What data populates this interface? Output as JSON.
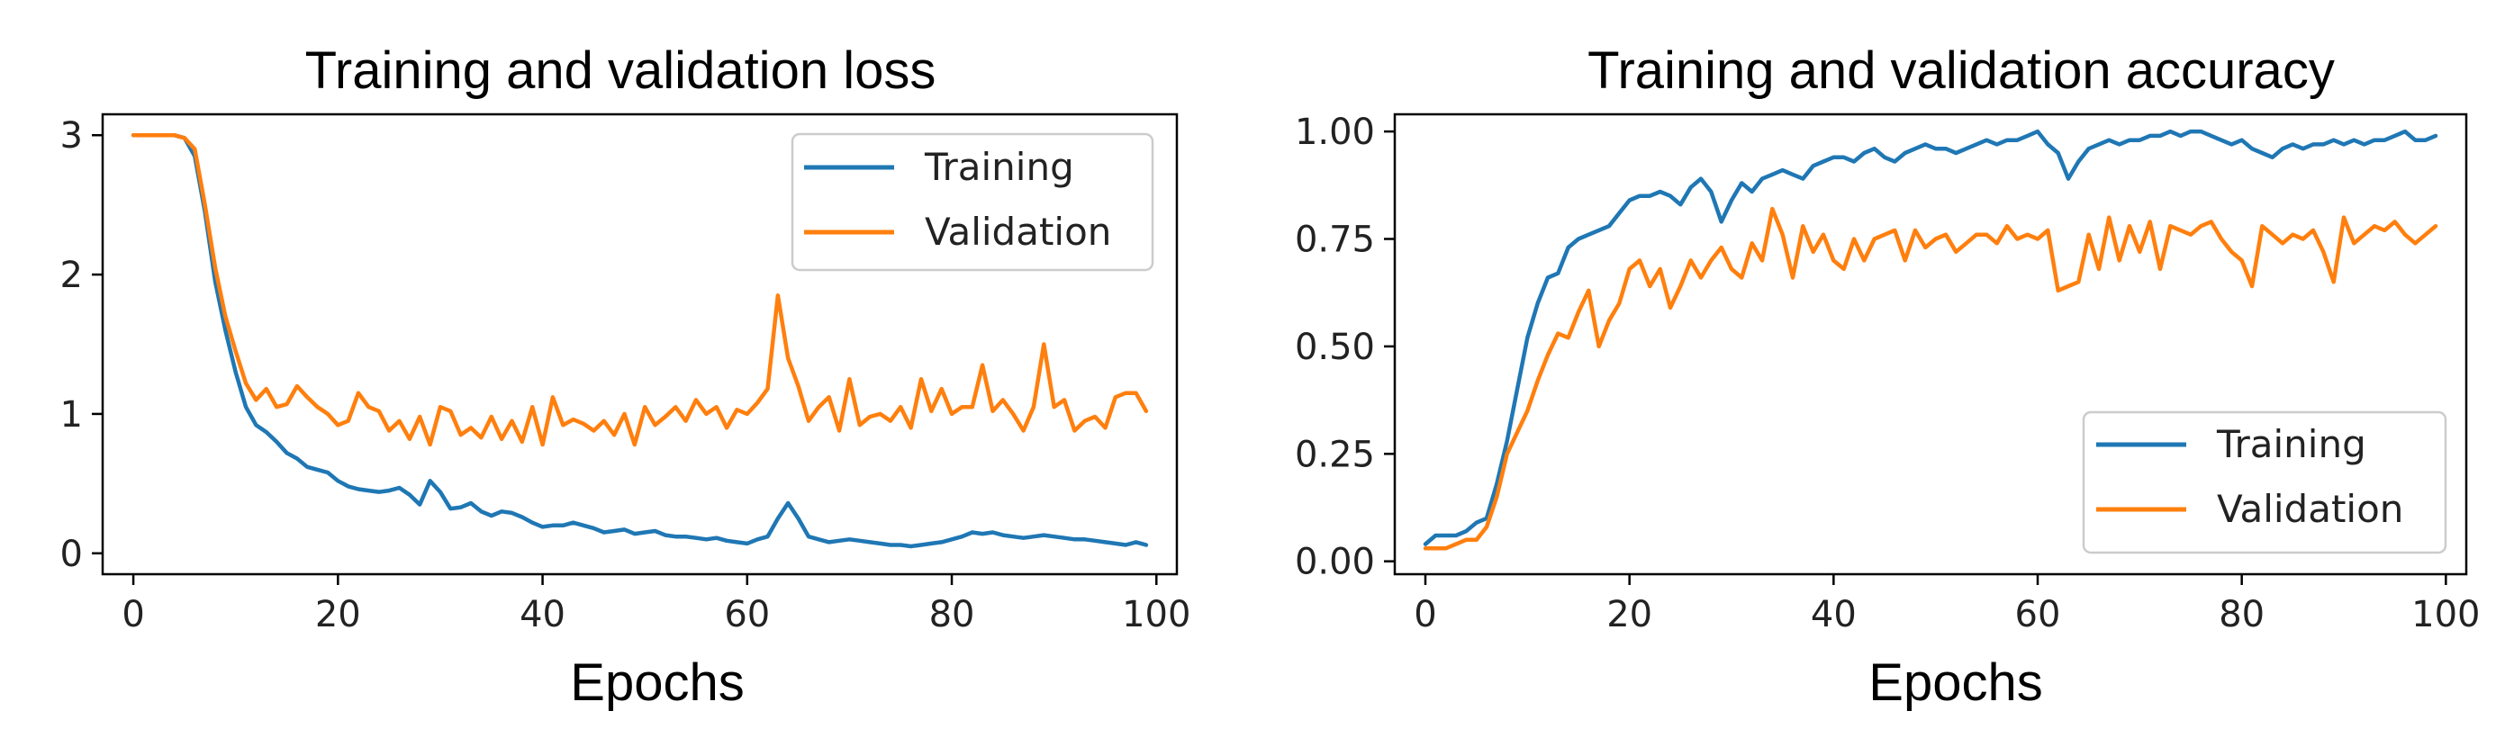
{
  "chart_data": [
    {
      "type": "line",
      "title": "Training and validation loss",
      "xlabel": "Epochs",
      "ylabel": "",
      "xlim": [
        -3,
        102
      ],
      "ylim": [
        -0.15,
        3.15
      ],
      "xticks": [
        0,
        20,
        40,
        60,
        80,
        100
      ],
      "yticks": [
        0,
        1,
        2,
        3
      ],
      "xtick_labels": [
        "0",
        "20",
        "40",
        "60",
        "80",
        "100"
      ],
      "ytick_labels": [
        "0",
        "1",
        "2",
        "3"
      ],
      "grid": false,
      "legend_position": "upper right",
      "series": [
        {
          "name": "Training",
          "color": "#1f77b4",
          "x": [
            0,
            1,
            2,
            3,
            4,
            5,
            6,
            7,
            8,
            9,
            10,
            11,
            12,
            13,
            14,
            15,
            16,
            17,
            18,
            19,
            20,
            21,
            22,
            23,
            24,
            25,
            26,
            27,
            28,
            29,
            30,
            31,
            32,
            33,
            34,
            35,
            36,
            37,
            38,
            39,
            40,
            41,
            42,
            43,
            44,
            45,
            46,
            47,
            48,
            49,
            50,
            51,
            52,
            53,
            54,
            55,
            56,
            57,
            58,
            59,
            60,
            61,
            62,
            63,
            64,
            65,
            66,
            67,
            68,
            69,
            70,
            71,
            72,
            73,
            74,
            75,
            76,
            77,
            78,
            79,
            80,
            81,
            82,
            83,
            84,
            85,
            86,
            87,
            88,
            89,
            90,
            91,
            92,
            93,
            94,
            95,
            96,
            97,
            98,
            99
          ],
          "values": [
            3.0,
            3.0,
            3.0,
            3.0,
            3.0,
            2.98,
            2.85,
            2.45,
            1.95,
            1.6,
            1.3,
            1.05,
            0.92,
            0.87,
            0.8,
            0.72,
            0.68,
            0.62,
            0.6,
            0.58,
            0.52,
            0.48,
            0.46,
            0.45,
            0.44,
            0.45,
            0.47,
            0.42,
            0.35,
            0.52,
            0.44,
            0.32,
            0.33,
            0.36,
            0.3,
            0.27,
            0.3,
            0.29,
            0.26,
            0.22,
            0.19,
            0.2,
            0.2,
            0.22,
            0.2,
            0.18,
            0.15,
            0.16,
            0.17,
            0.14,
            0.15,
            0.16,
            0.13,
            0.12,
            0.12,
            0.11,
            0.1,
            0.11,
            0.09,
            0.08,
            0.07,
            0.1,
            0.12,
            0.25,
            0.36,
            0.25,
            0.12,
            0.1,
            0.08,
            0.09,
            0.1,
            0.09,
            0.08,
            0.07,
            0.06,
            0.06,
            0.05,
            0.06,
            0.07,
            0.08,
            0.1,
            0.12,
            0.15,
            0.14,
            0.15,
            0.13,
            0.12,
            0.11,
            0.12,
            0.13,
            0.12,
            0.11,
            0.1,
            0.1,
            0.09,
            0.08,
            0.07,
            0.06,
            0.08,
            0.06
          ]
        },
        {
          "name": "Validation",
          "color": "#ff7f0e",
          "x": [
            0,
            1,
            2,
            3,
            4,
            5,
            6,
            7,
            8,
            9,
            10,
            11,
            12,
            13,
            14,
            15,
            16,
            17,
            18,
            19,
            20,
            21,
            22,
            23,
            24,
            25,
            26,
            27,
            28,
            29,
            30,
            31,
            32,
            33,
            34,
            35,
            36,
            37,
            38,
            39,
            40,
            41,
            42,
            43,
            44,
            45,
            46,
            47,
            48,
            49,
            50,
            51,
            52,
            53,
            54,
            55,
            56,
            57,
            58,
            59,
            60,
            61,
            62,
            63,
            64,
            65,
            66,
            67,
            68,
            69,
            70,
            71,
            72,
            73,
            74,
            75,
            76,
            77,
            78,
            79,
            80,
            81,
            82,
            83,
            84,
            85,
            86,
            87,
            88,
            89,
            90,
            91,
            92,
            93,
            94,
            95,
            96,
            97,
            98,
            99
          ],
          "values": [
            3.0,
            3.0,
            3.0,
            3.0,
            3.0,
            2.98,
            2.9,
            2.5,
            2.05,
            1.7,
            1.45,
            1.22,
            1.1,
            1.18,
            1.05,
            1.07,
            1.2,
            1.12,
            1.05,
            1.0,
            0.92,
            0.95,
            1.15,
            1.05,
            1.02,
            0.88,
            0.95,
            0.82,
            0.98,
            0.78,
            1.05,
            1.02,
            0.85,
            0.9,
            0.83,
            0.98,
            0.82,
            0.95,
            0.8,
            1.05,
            0.78,
            1.12,
            0.92,
            0.96,
            0.93,
            0.88,
            0.95,
            0.85,
            1.0,
            0.78,
            1.05,
            0.92,
            0.98,
            1.05,
            0.95,
            1.1,
            1.0,
            1.05,
            0.9,
            1.03,
            1.0,
            1.08,
            1.18,
            1.85,
            1.4,
            1.2,
            0.95,
            1.05,
            1.12,
            0.88,
            1.25,
            0.92,
            0.98,
            1.0,
            0.95,
            1.05,
            0.9,
            1.25,
            1.02,
            1.18,
            1.0,
            1.05,
            1.05,
            1.35,
            1.02,
            1.1,
            1.0,
            0.88,
            1.05,
            1.5,
            1.05,
            1.1,
            0.88,
            0.95,
            0.98,
            0.9,
            1.12,
            1.15,
            1.15,
            1.02
          ]
        }
      ]
    },
    {
      "type": "line",
      "title": "Training and validation accuracy",
      "xlabel": "Epochs",
      "ylabel": "",
      "xlim": [
        -3,
        102
      ],
      "ylim": [
        -0.03,
        1.04
      ],
      "xticks": [
        0,
        20,
        40,
        60,
        80,
        100
      ],
      "yticks": [
        0.0,
        0.25,
        0.5,
        0.75,
        1.0
      ],
      "xtick_labels": [
        "0",
        "20",
        "40",
        "60",
        "80",
        "100"
      ],
      "ytick_labels": [
        "0.00",
        "0.25",
        "0.50",
        "0.75",
        "1.00"
      ],
      "grid": false,
      "legend_position": "lower right",
      "series": [
        {
          "name": "Training",
          "color": "#1f77b4",
          "x": [
            0,
            1,
            2,
            3,
            4,
            5,
            6,
            7,
            8,
            9,
            10,
            11,
            12,
            13,
            14,
            15,
            16,
            17,
            18,
            19,
            20,
            21,
            22,
            23,
            24,
            25,
            26,
            27,
            28,
            29,
            30,
            31,
            32,
            33,
            34,
            35,
            36,
            37,
            38,
            39,
            40,
            41,
            42,
            43,
            44,
            45,
            46,
            47,
            48,
            49,
            50,
            51,
            52,
            53,
            54,
            55,
            56,
            57,
            58,
            59,
            60,
            61,
            62,
            63,
            64,
            65,
            66,
            67,
            68,
            69,
            70,
            71,
            72,
            73,
            74,
            75,
            76,
            77,
            78,
            79,
            80,
            81,
            82,
            83,
            84,
            85,
            86,
            87,
            88,
            89,
            90,
            91,
            92,
            93,
            94,
            95,
            96,
            97,
            98,
            99
          ],
          "values": [
            0.04,
            0.06,
            0.06,
            0.06,
            0.07,
            0.09,
            0.1,
            0.18,
            0.28,
            0.4,
            0.52,
            0.6,
            0.66,
            0.67,
            0.73,
            0.75,
            0.76,
            0.77,
            0.78,
            0.81,
            0.84,
            0.85,
            0.85,
            0.86,
            0.85,
            0.83,
            0.87,
            0.89,
            0.86,
            0.79,
            0.84,
            0.88,
            0.86,
            0.89,
            0.9,
            0.91,
            0.9,
            0.89,
            0.92,
            0.93,
            0.94,
            0.94,
            0.93,
            0.95,
            0.96,
            0.94,
            0.93,
            0.95,
            0.96,
            0.97,
            0.96,
            0.96,
            0.95,
            0.96,
            0.97,
            0.98,
            0.97,
            0.98,
            0.98,
            0.99,
            1.0,
            0.97,
            0.95,
            0.89,
            0.93,
            0.96,
            0.97,
            0.98,
            0.97,
            0.98,
            0.98,
            0.99,
            0.99,
            1.0,
            0.99,
            1.0,
            1.0,
            0.99,
            0.98,
            0.97,
            0.98,
            0.96,
            0.95,
            0.94,
            0.96,
            0.97,
            0.96,
            0.97,
            0.97,
            0.98,
            0.97,
            0.98,
            0.97,
            0.98,
            0.98,
            0.99,
            1.0,
            0.98,
            0.98,
            0.99
          ]
        },
        {
          "name": "Validation",
          "color": "#ff7f0e",
          "x": [
            0,
            1,
            2,
            3,
            4,
            5,
            6,
            7,
            8,
            9,
            10,
            11,
            12,
            13,
            14,
            15,
            16,
            17,
            18,
            19,
            20,
            21,
            22,
            23,
            24,
            25,
            26,
            27,
            28,
            29,
            30,
            31,
            32,
            33,
            34,
            35,
            36,
            37,
            38,
            39,
            40,
            41,
            42,
            43,
            44,
            45,
            46,
            47,
            48,
            49,
            50,
            51,
            52,
            53,
            54,
            55,
            56,
            57,
            58,
            59,
            60,
            61,
            62,
            63,
            64,
            65,
            66,
            67,
            68,
            69,
            70,
            71,
            72,
            73,
            74,
            75,
            76,
            77,
            78,
            79,
            80,
            81,
            82,
            83,
            84,
            85,
            86,
            87,
            88,
            89,
            90,
            91,
            92,
            93,
            94,
            95,
            96,
            97,
            98,
            99
          ],
          "values": [
            0.03,
            0.03,
            0.03,
            0.04,
            0.05,
            0.05,
            0.08,
            0.15,
            0.25,
            0.3,
            0.35,
            0.42,
            0.48,
            0.53,
            0.52,
            0.58,
            0.63,
            0.5,
            0.56,
            0.6,
            0.68,
            0.7,
            0.64,
            0.68,
            0.59,
            0.64,
            0.7,
            0.66,
            0.7,
            0.73,
            0.68,
            0.66,
            0.74,
            0.7,
            0.82,
            0.76,
            0.66,
            0.78,
            0.72,
            0.76,
            0.7,
            0.68,
            0.75,
            0.7,
            0.75,
            0.76,
            0.77,
            0.7,
            0.77,
            0.73,
            0.75,
            0.76,
            0.72,
            0.74,
            0.76,
            0.76,
            0.74,
            0.78,
            0.75,
            0.76,
            0.75,
            0.77,
            0.63,
            0.64,
            0.65,
            0.76,
            0.68,
            0.8,
            0.7,
            0.78,
            0.72,
            0.79,
            0.68,
            0.78,
            0.77,
            0.76,
            0.78,
            0.79,
            0.75,
            0.72,
            0.7,
            0.64,
            0.78,
            0.76,
            0.74,
            0.76,
            0.75,
            0.77,
            0.72,
            0.65,
            0.8,
            0.74,
            0.76,
            0.78,
            0.77,
            0.79,
            0.76,
            0.74,
            0.76,
            0.78
          ]
        }
      ]
    }
  ]
}
